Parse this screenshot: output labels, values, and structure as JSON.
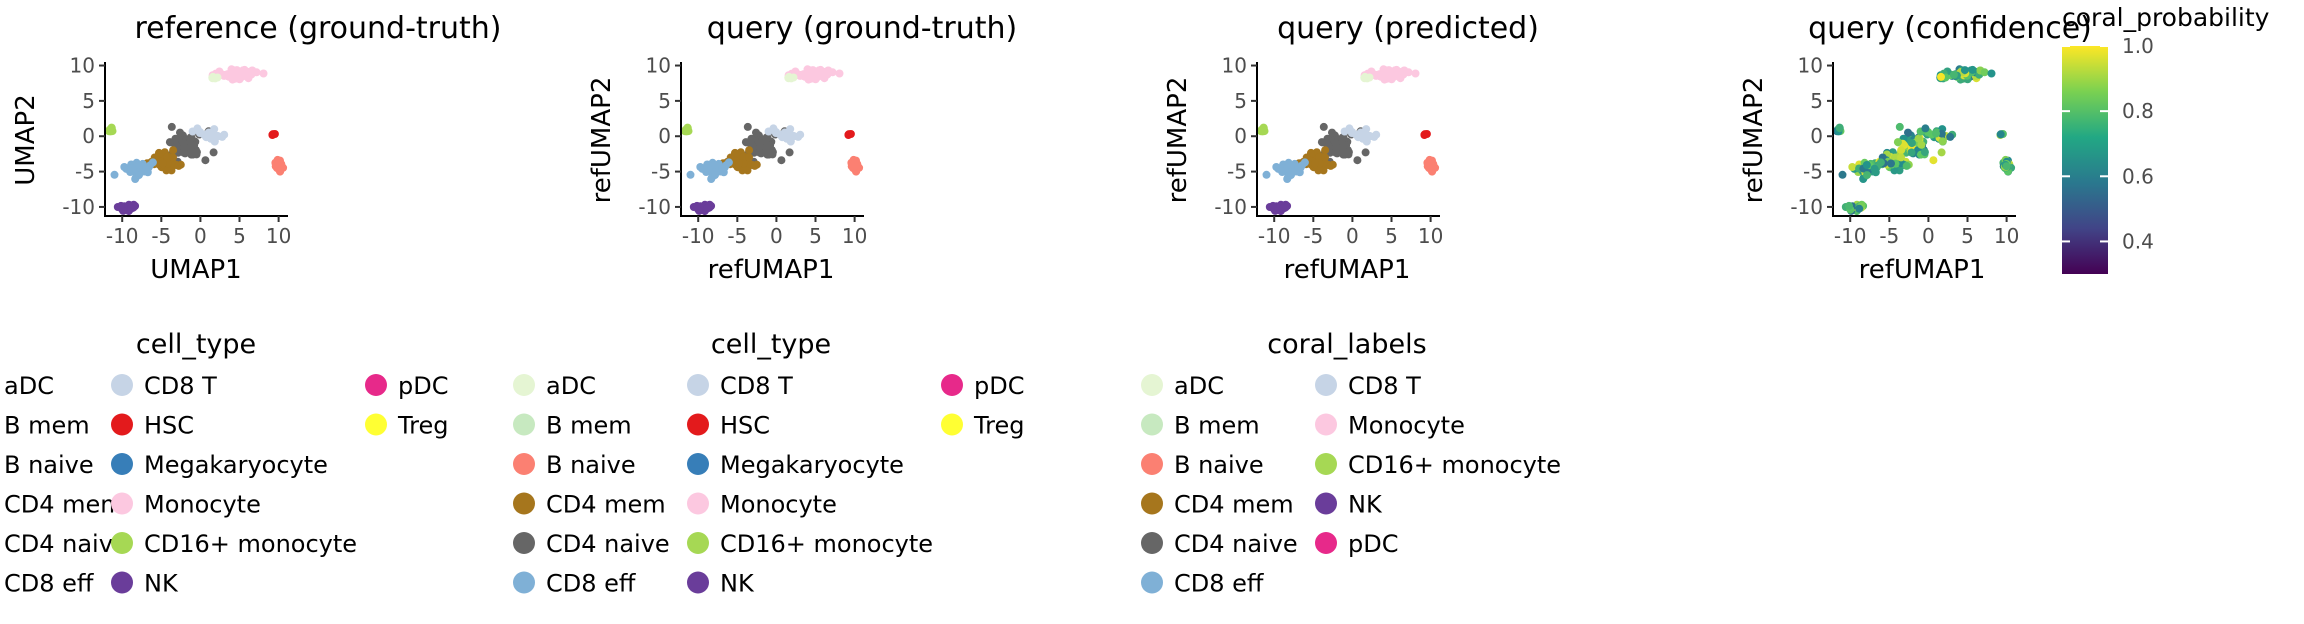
{
  "chart_data": [
    {
      "type": "scatter",
      "title": "reference (ground-truth)",
      "xlabel": "UMAP1",
      "ylabel": "UMAP2",
      "xlim": [
        -12.2,
        11.2
      ],
      "ylim": [
        -11,
        10.5
      ],
      "xticks": [
        -10,
        -5,
        0,
        5,
        10
      ],
      "yticks": [
        -10,
        -5,
        0,
        5,
        10
      ],
      "coloring": "cell_type"
    },
    {
      "type": "scatter",
      "title": "query (ground-truth)",
      "xlabel": "refUMAP1",
      "ylabel": "refUMAP2",
      "xlim": [
        -12.2,
        11.2
      ],
      "ylim": [
        -11,
        10.5
      ],
      "xticks": [
        -10,
        -5,
        0,
        5,
        10
      ],
      "yticks": [
        -10,
        -5,
        0,
        5,
        10
      ],
      "coloring": "cell_type"
    },
    {
      "type": "scatter",
      "title": "query (predicted)",
      "xlabel": "refUMAP1",
      "ylabel": "refUMAP2",
      "xlim": [
        -12.2,
        11.2
      ],
      "ylim": [
        -11,
        10.5
      ],
      "xticks": [
        -10,
        -5,
        0,
        5,
        10
      ],
      "yticks": [
        -10,
        -5,
        0,
        5,
        10
      ],
      "coloring": "coral_labels"
    },
    {
      "type": "scatter",
      "title": "query (confidence)",
      "xlabel": "refUMAP1",
      "ylabel": "refUMAP2",
      "xlim": [
        -12.2,
        11.2
      ],
      "ylim": [
        -11,
        10.5
      ],
      "xticks": [
        -10,
        -5,
        0,
        5,
        10
      ],
      "yticks": [
        -10,
        -5,
        0,
        5,
        10
      ],
      "coloring": "coral_probability",
      "colorbar": {
        "title": "coral_probability",
        "ticks": [
          0.4,
          0.6,
          0.8,
          1.0
        ],
        "tick_labels": [
          "0.4",
          "0.6",
          "0.8",
          "1.0"
        ],
        "range": [
          0.3,
          1.0
        ],
        "colormap": "viridis"
      }
    }
  ],
  "clusters": [
    {
      "label": "Monocyte",
      "cx": 4.5,
      "cy": 8.8,
      "rx": 2.6,
      "ry": 0.6,
      "n": 60
    },
    {
      "label": "aDC",
      "cx": 1.6,
      "cy": 8.3,
      "rx": 0.4,
      "ry": 0.4,
      "n": 5
    },
    {
      "label": "CD16+ monocyte",
      "cx": -11.5,
      "cy": 0.8,
      "rx": 0.4,
      "ry": 0.4,
      "n": 6
    },
    {
      "label": "CD4 naive",
      "cx": -1.8,
      "cy": -1.2,
      "rx": 2.2,
      "ry": 1.8,
      "n": 60
    },
    {
      "label": "CD8 T",
      "cx": 1.3,
      "cy": 0.1,
      "rx": 1.2,
      "ry": 0.9,
      "n": 25
    },
    {
      "label": "CD4 mem",
      "cx": -4.5,
      "cy": -3.5,
      "rx": 1.8,
      "ry": 1.0,
      "n": 40
    },
    {
      "label": "CD8 eff",
      "cx": -8.0,
      "cy": -4.6,
      "rx": 1.6,
      "ry": 1.0,
      "n": 40
    },
    {
      "label": "NK",
      "cx": -9.5,
      "cy": -10.0,
      "rx": 0.9,
      "ry": 0.6,
      "n": 20
    },
    {
      "label": "HSC",
      "cx": 9.2,
      "cy": 0.2,
      "rx": 0.3,
      "ry": 0.3,
      "n": 4
    },
    {
      "label": "B naive",
      "cx": 10.0,
      "cy": -4.3,
      "rx": 0.6,
      "ry": 0.9,
      "n": 25
    }
  ],
  "legends": {
    "panel1": {
      "title": "cell_type",
      "columns": [
        [
          {
            "label": "aDC",
            "color": "#e5f5d3"
          },
          {
            "label": "B mem",
            "color": "#c7e9c0"
          },
          {
            "label": "B naive",
            "color": "#fb8072"
          },
          {
            "label": "CD4 mem",
            "color": "#a6761d"
          },
          {
            "label": "CD4 naive",
            "color": "#666666"
          },
          {
            "label": "CD8 eff",
            "color": "#7fb0d6"
          }
        ],
        [
          {
            "label": "CD8 T",
            "color": "#c6d4e6"
          },
          {
            "label": "HSC",
            "color": "#e31a1c"
          },
          {
            "label": "Megakaryocyte",
            "color": "#377eb8"
          },
          {
            "label": "Monocyte",
            "color": "#fcc8e0"
          },
          {
            "label": "CD16+ monocyte",
            "color": "#a6d854"
          },
          {
            "label": "NK",
            "color": "#6a3d9a"
          }
        ],
        [
          {
            "label": "pDC",
            "color": "#e7298a"
          },
          {
            "label": "Treg",
            "color": "#ffff33"
          }
        ]
      ]
    },
    "panel2": {
      "title": "cell_type",
      "columns": [
        [
          {
            "label": "aDC",
            "color": "#e5f5d3"
          },
          {
            "label": "B mem",
            "color": "#c7e9c0"
          },
          {
            "label": "B naive",
            "color": "#fb8072"
          },
          {
            "label": "CD4 mem",
            "color": "#a6761d"
          },
          {
            "label": "CD4 naive",
            "color": "#666666"
          },
          {
            "label": "CD8 eff",
            "color": "#7fb0d6"
          }
        ],
        [
          {
            "label": "CD8 T",
            "color": "#c6d4e6"
          },
          {
            "label": "HSC",
            "color": "#e31a1c"
          },
          {
            "label": "Megakaryocyte",
            "color": "#377eb8"
          },
          {
            "label": "Monocyte",
            "color": "#fcc8e0"
          },
          {
            "label": "CD16+ monocyte",
            "color": "#a6d854"
          },
          {
            "label": "NK",
            "color": "#6a3d9a"
          }
        ],
        [
          {
            "label": "pDC",
            "color": "#e7298a"
          },
          {
            "label": "Treg",
            "color": "#ffff33"
          }
        ]
      ]
    },
    "panel3": {
      "title": "coral_labels",
      "columns": [
        [
          {
            "label": "aDC",
            "color": "#e5f5d3"
          },
          {
            "label": "B mem",
            "color": "#c7e9c0"
          },
          {
            "label": "B naive",
            "color": "#fb8072"
          },
          {
            "label": "CD4 mem",
            "color": "#a6761d"
          },
          {
            "label": "CD4 naive",
            "color": "#666666"
          },
          {
            "label": "CD8 eff",
            "color": "#7fb0d6"
          }
        ],
        [
          {
            "label": "CD8 T",
            "color": "#c6d4e6"
          },
          {
            "label": "Monocyte",
            "color": "#fcc8e0"
          },
          {
            "label": "CD16+ monocyte",
            "color": "#a6d854"
          },
          {
            "label": "NK",
            "color": "#6a3d9a"
          },
          {
            "label": "pDC",
            "color": "#e7298a"
          }
        ]
      ]
    }
  }
}
